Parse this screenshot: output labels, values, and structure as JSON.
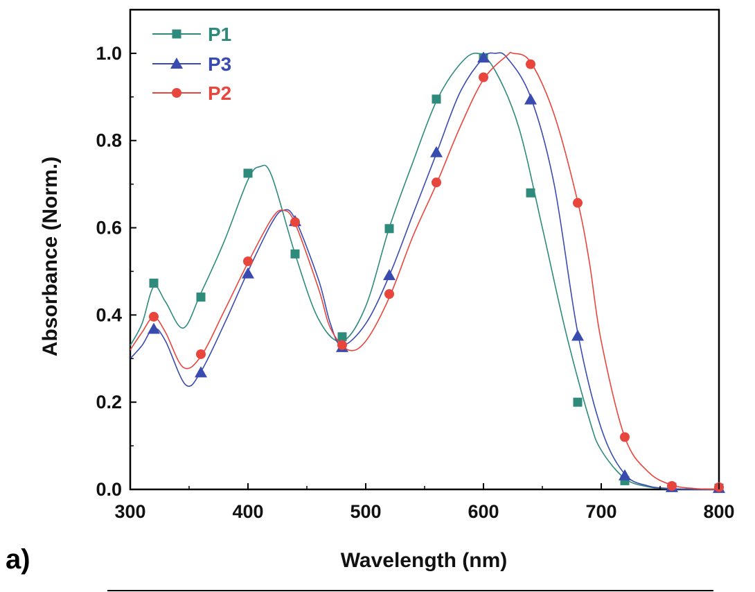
{
  "panel_label": "a)",
  "chart_data": {
    "type": "line",
    "title": "",
    "xlabel": "Wavelength (nm)",
    "ylabel": "Absorbance (Norm.)",
    "xlim": [
      300,
      800
    ],
    "ylim": [
      0.0,
      1.1
    ],
    "x_ticks": [
      300,
      400,
      500,
      600,
      700,
      800
    ],
    "x_tick_labels": [
      "300",
      "400",
      "500",
      "600",
      "700",
      "800"
    ],
    "y_ticks": [
      0.0,
      0.2,
      0.4,
      0.6,
      0.8,
      1.0
    ],
    "y_tick_labels": [
      "0.0",
      "0.2",
      "0.4",
      "0.6",
      "0.8",
      "1.0"
    ],
    "grid": false,
    "legend_position": "top-left",
    "series": [
      {
        "name": "P1",
        "color": "#2e8b7c",
        "marker": "square",
        "curve": [
          [
            300,
            0.33
          ],
          [
            310,
            0.38
          ],
          [
            320,
            0.465
          ],
          [
            330,
            0.43
          ],
          [
            345,
            0.37
          ],
          [
            360,
            0.45
          ],
          [
            380,
            0.57
          ],
          [
            400,
            0.71
          ],
          [
            410,
            0.74
          ],
          [
            420,
            0.72
          ],
          [
            440,
            0.54
          ],
          [
            460,
            0.39
          ],
          [
            480,
            0.34
          ],
          [
            500,
            0.42
          ],
          [
            520,
            0.6
          ],
          [
            540,
            0.75
          ],
          [
            560,
            0.89
          ],
          [
            580,
            0.975
          ],
          [
            595,
            1.0
          ],
          [
            610,
            0.96
          ],
          [
            630,
            0.83
          ],
          [
            650,
            0.6
          ],
          [
            670,
            0.36
          ],
          [
            690,
            0.16
          ],
          [
            700,
            0.09
          ],
          [
            720,
            0.025
          ],
          [
            740,
            0.006
          ],
          [
            760,
            0.001
          ],
          [
            780,
            0.0
          ],
          [
            800,
            0.0
          ]
        ],
        "points": [
          [
            320,
            0.473
          ],
          [
            360,
            0.441
          ],
          [
            400,
            0.725
          ],
          [
            440,
            0.54
          ],
          [
            480,
            0.35
          ],
          [
            520,
            0.598
          ],
          [
            560,
            0.895
          ],
          [
            600,
            0.99
          ],
          [
            640,
            0.68
          ],
          [
            680,
            0.2
          ],
          [
            720,
            0.02
          ],
          [
            760,
            0.005
          ],
          [
            800,
            0.003
          ]
        ]
      },
      {
        "name": "P3",
        "color": "#3a4bb0",
        "marker": "triangle",
        "curve": [
          [
            300,
            0.3
          ],
          [
            310,
            0.33
          ],
          [
            320,
            0.37
          ],
          [
            330,
            0.34
          ],
          [
            347,
            0.24
          ],
          [
            360,
            0.27
          ],
          [
            380,
            0.38
          ],
          [
            400,
            0.5
          ],
          [
            420,
            0.61
          ],
          [
            430,
            0.64
          ],
          [
            440,
            0.62
          ],
          [
            460,
            0.48
          ],
          [
            470,
            0.38
          ],
          [
            480,
            0.33
          ],
          [
            500,
            0.38
          ],
          [
            520,
            0.49
          ],
          [
            540,
            0.63
          ],
          [
            560,
            0.77
          ],
          [
            580,
            0.91
          ],
          [
            600,
            0.99
          ],
          [
            610,
            1.0
          ],
          [
            620,
            0.99
          ],
          [
            640,
            0.9
          ],
          [
            660,
            0.7
          ],
          [
            680,
            0.36
          ],
          [
            700,
            0.14
          ],
          [
            720,
            0.035
          ],
          [
            740,
            0.008
          ],
          [
            760,
            0.002
          ],
          [
            780,
            0.0
          ],
          [
            800,
            0.0
          ]
        ],
        "points": [
          [
            320,
            0.368
          ],
          [
            360,
            0.268
          ],
          [
            400,
            0.495
          ],
          [
            440,
            0.615
          ],
          [
            480,
            0.326
          ],
          [
            520,
            0.491
          ],
          [
            560,
            0.773
          ],
          [
            600,
            0.99
          ],
          [
            640,
            0.894
          ],
          [
            680,
            0.352
          ],
          [
            720,
            0.032
          ],
          [
            760,
            0.005
          ],
          [
            800,
            0.003
          ]
        ]
      },
      {
        "name": "P2",
        "color": "#e8453c",
        "marker": "circle",
        "curve": [
          [
            300,
            0.32
          ],
          [
            310,
            0.36
          ],
          [
            320,
            0.395
          ],
          [
            330,
            0.36
          ],
          [
            345,
            0.28
          ],
          [
            360,
            0.305
          ],
          [
            380,
            0.41
          ],
          [
            400,
            0.52
          ],
          [
            420,
            0.62
          ],
          [
            430,
            0.64
          ],
          [
            440,
            0.61
          ],
          [
            460,
            0.46
          ],
          [
            470,
            0.37
          ],
          [
            485,
            0.32
          ],
          [
            500,
            0.34
          ],
          [
            520,
            0.44
          ],
          [
            540,
            0.58
          ],
          [
            560,
            0.7
          ],
          [
            580,
            0.83
          ],
          [
            600,
            0.94
          ],
          [
            620,
            0.995
          ],
          [
            625,
            1.0
          ],
          [
            640,
            0.98
          ],
          [
            660,
            0.86
          ],
          [
            680,
            0.66
          ],
          [
            690,
            0.52
          ],
          [
            700,
            0.34
          ],
          [
            720,
            0.12
          ],
          [
            740,
            0.04
          ],
          [
            760,
            0.01
          ],
          [
            780,
            0.002
          ],
          [
            800,
            0.0
          ]
        ],
        "points": [
          [
            320,
            0.396
          ],
          [
            360,
            0.31
          ],
          [
            400,
            0.523
          ],
          [
            440,
            0.613
          ],
          [
            480,
            0.331
          ],
          [
            520,
            0.448
          ],
          [
            560,
            0.704
          ],
          [
            600,
            0.945
          ],
          [
            640,
            0.975
          ],
          [
            680,
            0.657
          ],
          [
            720,
            0.12
          ],
          [
            760,
            0.008
          ],
          [
            800,
            0.005
          ]
        ]
      }
    ]
  }
}
